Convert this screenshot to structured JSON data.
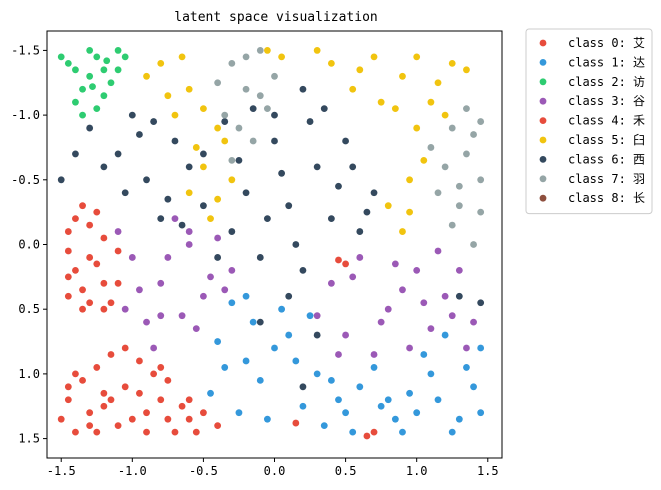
{
  "chart_data": {
    "type": "scatter",
    "title": "latent space visualization",
    "xlabel": "",
    "ylabel": "",
    "xlim": [
      -1.6,
      1.6
    ],
    "ylim": [
      1.65,
      -1.65
    ],
    "y_inverted": true,
    "x_ticks": [
      -1.5,
      -1.0,
      -0.5,
      0.0,
      0.5,
      1.0,
      1.5
    ],
    "x_tick_labels": [
      "-1.5",
      "-1.0",
      "-0.5",
      "0.0",
      "0.5",
      "1.0",
      "1.5"
    ],
    "y_ticks": [
      -1.5,
      -1.0,
      -0.5,
      0.0,
      0.5,
      1.0,
      1.5
    ],
    "y_tick_labels": [
      "-1.5",
      "-1.0",
      "-0.5",
      "0.0",
      "0.5",
      "1.0",
      "1.5"
    ],
    "grid": false,
    "legend_position": "outside-right",
    "series": [
      {
        "name": "class 0: 艾",
        "color": "#e74c3c",
        "values": [
          [
            -1.15,
            0.85
          ],
          [
            -0.9,
            1.3
          ],
          [
            -1.45,
            1.2
          ],
          [
            -1.3,
            1.4
          ],
          [
            -0.75,
            1.05
          ],
          [
            -1.05,
            1.1
          ],
          [
            -1.2,
            1.25
          ],
          [
            -0.6,
            1.35
          ],
          [
            -1.4,
            1.45
          ],
          [
            -0.95,
            0.9
          ],
          [
            -0.55,
            1.45
          ],
          [
            -0.8,
            1.2
          ],
          [
            -1.35,
            1.05
          ],
          [
            -1.1,
            1.4
          ],
          [
            -0.7,
            1.45
          ],
          [
            -1.25,
            0.95
          ],
          [
            -0.85,
            1.0
          ],
          [
            -1.0,
            1.35
          ],
          [
            -1.5,
            1.35
          ],
          [
            -0.65,
            1.25
          ],
          [
            -1.4,
            1.0
          ],
          [
            -1.2,
            1.15
          ],
          [
            -0.9,
            1.45
          ],
          [
            -0.5,
            1.3
          ],
          [
            -1.3,
            1.3
          ],
          [
            -1.05,
            0.8
          ],
          [
            -0.75,
            1.35
          ],
          [
            -1.15,
            1.2
          ],
          [
            -1.45,
            1.1
          ],
          [
            -0.95,
            1.15
          ],
          [
            -0.6,
            1.2
          ],
          [
            -1.25,
            1.45
          ],
          [
            -0.8,
            0.95
          ],
          [
            0.7,
            1.45
          ],
          [
            0.65,
            1.48
          ],
          [
            0.15,
            1.38
          ],
          [
            -0.4,
            1.4
          ]
        ]
      },
      {
        "name": "class 1: 达",
        "color": "#3498db",
        "values": [
          [
            -0.3,
            0.45
          ],
          [
            0.1,
            0.7
          ],
          [
            -0.2,
            0.9
          ],
          [
            0.3,
            1.0
          ],
          [
            0.5,
            1.3
          ],
          [
            0.8,
            1.2
          ],
          [
            1.1,
            1.0
          ],
          [
            1.3,
            1.35
          ],
          [
            1.45,
            0.8
          ],
          [
            0.9,
            1.45
          ],
          [
            0.6,
            1.1
          ],
          [
            0.2,
            1.25
          ],
          [
            -0.1,
            1.05
          ],
          [
            -0.4,
            0.75
          ],
          [
            -0.25,
            1.3
          ],
          [
            0.05,
            0.5
          ],
          [
            0.35,
            1.4
          ],
          [
            0.7,
            0.95
          ],
          [
            1.0,
            1.3
          ],
          [
            1.2,
            0.7
          ],
          [
            1.4,
            1.1
          ],
          [
            0.45,
            1.2
          ],
          [
            -0.45,
            1.15
          ],
          [
            -0.15,
            0.6
          ],
          [
            0.15,
            0.9
          ],
          [
            0.95,
            1.15
          ],
          [
            1.25,
            1.45
          ],
          [
            0.55,
            1.45
          ],
          [
            -0.35,
            0.95
          ],
          [
            0.25,
            0.55
          ],
          [
            0.85,
            1.35
          ],
          [
            1.15,
            1.2
          ],
          [
            1.35,
            0.95
          ],
          [
            -0.05,
            1.35
          ],
          [
            0.4,
            1.05
          ],
          [
            0.75,
            1.25
          ],
          [
            1.05,
            0.85
          ],
          [
            -0.2,
            0.4
          ],
          [
            0.0,
            0.8
          ],
          [
            1.45,
            1.3
          ]
        ]
      },
      {
        "name": "class 2: 访",
        "color": "#2ecc71",
        "values": [
          [
            -1.45,
            -1.4
          ],
          [
            -1.3,
            -1.5
          ],
          [
            -1.2,
            -1.35
          ],
          [
            -1.1,
            -1.5
          ],
          [
            -1.35,
            -1.2
          ],
          [
            -1.25,
            -1.05
          ],
          [
            -1.4,
            -1.1
          ],
          [
            -1.15,
            -1.25
          ],
          [
            -1.3,
            -1.3
          ],
          [
            -1.05,
            -1.45
          ],
          [
            -1.2,
            -1.15
          ],
          [
            -1.4,
            -1.35
          ],
          [
            -1.25,
            -1.45
          ],
          [
            -1.35,
            -1.0
          ],
          [
            -1.1,
            -1.35
          ],
          [
            -1.5,
            -1.45
          ],
          [
            -1.28,
            -1.22
          ],
          [
            -1.18,
            -1.42
          ]
        ]
      },
      {
        "name": "class 3: 谷",
        "color": "#9b59b6",
        "values": [
          [
            -1.0,
            0.1
          ],
          [
            -0.8,
            0.3
          ],
          [
            -0.6,
            0.0
          ],
          [
            -0.9,
            0.6
          ],
          [
            -0.7,
            -0.2
          ],
          [
            -0.5,
            0.4
          ],
          [
            -0.3,
            0.2
          ],
          [
            -1.1,
            -0.1
          ],
          [
            -0.85,
            0.8
          ],
          [
            -0.65,
            0.55
          ],
          [
            0.4,
            0.3
          ],
          [
            0.6,
            0.1
          ],
          [
            0.8,
            0.5
          ],
          [
            1.0,
            0.2
          ],
          [
            1.2,
            0.4
          ],
          [
            1.4,
            0.6
          ],
          [
            0.5,
            0.7
          ],
          [
            0.7,
            0.85
          ],
          [
            0.9,
            0.35
          ],
          [
            1.1,
            0.65
          ],
          [
            1.3,
            0.2
          ],
          [
            0.3,
            0.55
          ],
          [
            0.55,
            0.25
          ],
          [
            0.75,
            0.6
          ],
          [
            0.95,
            0.8
          ],
          [
            1.15,
            0.05
          ],
          [
            1.35,
            0.8
          ],
          [
            -0.95,
            0.35
          ],
          [
            -0.75,
            0.1
          ],
          [
            -0.55,
            0.65
          ],
          [
            -0.4,
            -0.05
          ],
          [
            -1.05,
            0.5
          ],
          [
            -0.45,
            0.25
          ],
          [
            0.85,
            0.15
          ],
          [
            1.25,
            0.55
          ],
          [
            0.45,
            0.85
          ],
          [
            1.05,
            0.45
          ],
          [
            -0.6,
            -0.1
          ],
          [
            -0.8,
            0.55
          ],
          [
            -0.35,
            0.35
          ]
        ]
      },
      {
        "name": "class 4: 禾",
        "color": "#e74c3c",
        "values": [
          [
            -1.45,
            -0.1
          ],
          [
            -1.3,
            0.1
          ],
          [
            -1.2,
            0.3
          ],
          [
            -1.35,
            0.5
          ],
          [
            -1.45,
            0.4
          ],
          [
            -1.25,
            -0.25
          ],
          [
            -1.1,
            0.05
          ],
          [
            -1.4,
            0.2
          ],
          [
            -1.3,
            -0.15
          ],
          [
            -1.15,
            0.45
          ],
          [
            -1.45,
            0.25
          ],
          [
            -1.2,
            -0.05
          ],
          [
            -1.35,
            0.35
          ],
          [
            -1.25,
            0.15
          ],
          [
            -1.4,
            -0.2
          ],
          [
            -1.1,
            0.3
          ],
          [
            -1.3,
            0.45
          ],
          [
            -1.45,
            0.05
          ],
          [
            -1.2,
            0.5
          ],
          [
            -1.35,
            -0.3
          ],
          [
            0.5,
            0.15
          ],
          [
            0.45,
            0.12
          ]
        ]
      },
      {
        "name": "class 5: 臼",
        "color": "#f1c40f",
        "values": [
          [
            -0.8,
            -1.4
          ],
          [
            -0.6,
            -1.2
          ],
          [
            -0.7,
            -1.0
          ],
          [
            -0.5,
            -0.6
          ],
          [
            -0.4,
            -0.9
          ],
          [
            -0.3,
            -0.5
          ],
          [
            -0.6,
            -0.4
          ],
          [
            -0.45,
            -0.2
          ],
          [
            0.4,
            -1.4
          ],
          [
            0.55,
            -1.2
          ],
          [
            0.7,
            -1.45
          ],
          [
            0.9,
            -1.3
          ],
          [
            1.1,
            -1.1
          ],
          [
            1.25,
            -1.4
          ],
          [
            1.0,
            -0.9
          ],
          [
            0.85,
            -1.05
          ],
          [
            1.15,
            -1.25
          ],
          [
            0.95,
            -0.5
          ],
          [
            1.05,
            -0.65
          ],
          [
            0.8,
            -0.3
          ],
          [
            0.9,
            -0.1
          ],
          [
            -0.9,
            -1.3
          ],
          [
            -0.75,
            -1.15
          ],
          [
            -0.55,
            -0.75
          ],
          [
            -0.35,
            -0.8
          ],
          [
            0.3,
            -1.5
          ],
          [
            0.6,
            -1.35
          ],
          [
            1.2,
            -1.0
          ],
          [
            1.0,
            -1.45
          ],
          [
            0.75,
            -1.1
          ],
          [
            -0.65,
            -1.45
          ],
          [
            -0.5,
            -1.05
          ],
          [
            0.05,
            -1.45
          ],
          [
            -0.05,
            -1.5
          ],
          [
            1.35,
            -1.35
          ],
          [
            0.95,
            -0.25
          ],
          [
            -0.4,
            -0.35
          ]
        ]
      },
      {
        "name": "class 6: 西",
        "color": "#34495e",
        "values": [
          [
            -1.3,
            -0.9
          ],
          [
            -1.1,
            -0.7
          ],
          [
            -0.9,
            -0.5
          ],
          [
            -0.7,
            -0.8
          ],
          [
            -0.5,
            -0.3
          ],
          [
            -0.3,
            -0.1
          ],
          [
            -0.1,
            0.1
          ],
          [
            0.1,
            -0.3
          ],
          [
            0.3,
            -0.6
          ],
          [
            0.5,
            -0.8
          ],
          [
            0.7,
            -0.4
          ],
          [
            0.6,
            -0.1
          ],
          [
            -1.2,
            -0.6
          ],
          [
            -1.0,
            -1.0
          ],
          [
            -0.8,
            -0.2
          ],
          [
            -0.6,
            -0.6
          ],
          [
            -0.4,
            0.1
          ],
          [
            -0.2,
            -0.4
          ],
          [
            0.0,
            -0.8
          ],
          [
            0.2,
            0.2
          ],
          [
            0.4,
            -0.2
          ],
          [
            -1.4,
            -0.7
          ],
          [
            -0.95,
            -0.85
          ],
          [
            -0.75,
            -0.35
          ],
          [
            -0.25,
            -0.65
          ],
          [
            0.05,
            -0.55
          ],
          [
            0.25,
            -0.95
          ],
          [
            0.45,
            -0.45
          ],
          [
            -0.05,
            -0.2
          ],
          [
            0.15,
            0.0
          ],
          [
            -0.35,
            -0.95
          ],
          [
            -0.15,
            -1.05
          ],
          [
            0.35,
            -1.05
          ],
          [
            0.55,
            -0.6
          ],
          [
            -1.05,
            -0.4
          ],
          [
            -0.85,
            -0.95
          ],
          [
            -0.65,
            -0.15
          ],
          [
            0.1,
            0.4
          ],
          [
            0.3,
            0.7
          ],
          [
            -0.1,
            0.6
          ],
          [
            1.3,
            0.4
          ],
          [
            1.45,
            0.45
          ],
          [
            0.2,
            1.1
          ],
          [
            -1.5,
            -0.5
          ],
          [
            0.65,
            -0.25
          ],
          [
            0.0,
            -1.0
          ],
          [
            0.2,
            -1.2
          ],
          [
            -0.5,
            -0.7
          ]
        ]
      },
      {
        "name": "class 7: 羽",
        "color": "#95a5a6",
        "values": [
          [
            -0.3,
            -1.4
          ],
          [
            -0.1,
            -1.5
          ],
          [
            -0.2,
            -1.2
          ],
          [
            -0.35,
            -1.0
          ],
          [
            -0.15,
            -0.8
          ],
          [
            0.0,
            -1.3
          ],
          [
            -0.25,
            -0.9
          ],
          [
            -0.4,
            -1.25
          ],
          [
            -0.05,
            -1.05
          ],
          [
            -0.2,
            -1.45
          ],
          [
            1.25,
            -0.9
          ],
          [
            1.35,
            -0.7
          ],
          [
            1.45,
            -0.5
          ],
          [
            1.3,
            -0.3
          ],
          [
            1.2,
            -0.6
          ],
          [
            1.4,
            -0.85
          ],
          [
            1.35,
            -1.05
          ],
          [
            1.15,
            -0.4
          ],
          [
            1.45,
            -0.25
          ],
          [
            1.25,
            -0.15
          ],
          [
            1.4,
            0.0
          ],
          [
            1.3,
            -0.45
          ],
          [
            -0.3,
            -0.65
          ],
          [
            -0.1,
            -1.15
          ],
          [
            1.1,
            -0.75
          ],
          [
            1.45,
            -0.95
          ]
        ]
      },
      {
        "name": "class 8: 长",
        "color": "#8e4f3e",
        "values": []
      }
    ]
  }
}
